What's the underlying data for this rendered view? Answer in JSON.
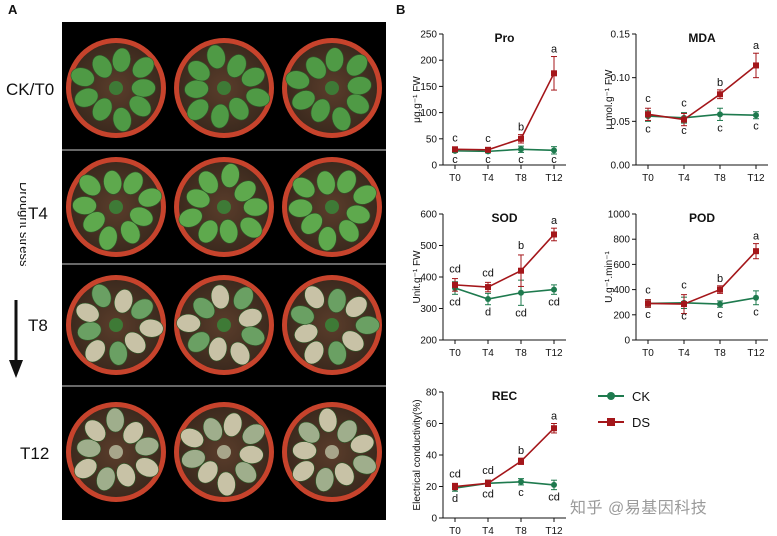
{
  "panels": {
    "a": "A",
    "b": "B"
  },
  "photo_panel": {
    "rows": [
      "CK/T0",
      "T4",
      "T8",
      "T12"
    ],
    "arrow_label": "Drought stress"
  },
  "legend": {
    "ck": {
      "label": "CK",
      "color": "#1e7a4e"
    },
    "ds": {
      "label": "DS",
      "color": "#a4161a"
    }
  },
  "watermark": "知乎 @易基因科技",
  "chart_data": [
    {
      "id": "pro",
      "type": "line",
      "title": "Pro",
      "ylabel": "μg.g⁻¹ FW",
      "categories": [
        "T0",
        "T4",
        "T8",
        "T12"
      ],
      "ylim": [
        0,
        250
      ],
      "yticks": [
        0,
        50,
        100,
        150,
        200,
        250
      ],
      "series": [
        {
          "name": "CK",
          "values": [
            27,
            26,
            30,
            28
          ],
          "err": [
            3,
            3,
            6,
            7
          ],
          "sig": [
            "c",
            "c",
            "c",
            "c"
          ]
        },
        {
          "name": "DS",
          "values": [
            30,
            29,
            50,
            175
          ],
          "err": [
            3,
            3,
            8,
            32
          ],
          "sig": [
            "c",
            "c",
            "b",
            "a"
          ]
        }
      ]
    },
    {
      "id": "mda",
      "type": "line",
      "title": "MDA",
      "ylabel": "μ mol.g⁻¹ FW",
      "categories": [
        "T0",
        "T4",
        "T8",
        "T12"
      ],
      "ylim": [
        0,
        0.15
      ],
      "yticks": [
        0.0,
        0.05,
        0.1,
        0.15
      ],
      "series": [
        {
          "name": "CK",
          "values": [
            0.056,
            0.054,
            0.058,
            0.057
          ],
          "err": [
            0.006,
            0.006,
            0.007,
            0.004
          ],
          "sig": [
            "c",
            "c",
            "c",
            "c"
          ]
        },
        {
          "name": "DS",
          "values": [
            0.058,
            0.052,
            0.081,
            0.114
          ],
          "err": [
            0.007,
            0.007,
            0.005,
            0.014
          ],
          "sig": [
            "c",
            "c",
            "b",
            "a"
          ]
        }
      ]
    },
    {
      "id": "sod",
      "type": "line",
      "title": "SOD",
      "ylabel": "Unit.g⁻¹ FW",
      "categories": [
        "T0",
        "T4",
        "T8",
        "T12"
      ],
      "ylim": [
        200,
        600
      ],
      "yticks": [
        200,
        300,
        400,
        500,
        600
      ],
      "series": [
        {
          "name": "CK",
          "values": [
            365,
            330,
            350,
            360
          ],
          "err": [
            20,
            18,
            40,
            15
          ],
          "sig": [
            "cd",
            "d",
            "cd",
            "cd"
          ]
        },
        {
          "name": "DS",
          "values": [
            375,
            368,
            420,
            535
          ],
          "err": [
            20,
            15,
            50,
            20
          ],
          "sig": [
            "cd",
            "cd",
            "b",
            "a"
          ]
        }
      ]
    },
    {
      "id": "pod",
      "type": "line",
      "title": "POD",
      "ylabel": "U.g⁻¹.min⁻¹",
      "categories": [
        "T0",
        "T4",
        "T8",
        "T12"
      ],
      "ylim": [
        0,
        1000
      ],
      "yticks": [
        0,
        200,
        400,
        600,
        800,
        1000
      ],
      "series": [
        {
          "name": "CK",
          "values": [
            290,
            295,
            285,
            335
          ],
          "err": [
            30,
            45,
            25,
            55
          ],
          "sig": [
            "c",
            "c",
            "c",
            "c"
          ]
        },
        {
          "name": "DS",
          "values": [
            290,
            285,
            400,
            705
          ],
          "err": [
            30,
            75,
            30,
            60
          ],
          "sig": [
            "c",
            "c",
            "b",
            "a"
          ]
        }
      ]
    },
    {
      "id": "rec",
      "type": "line",
      "title": "REC",
      "ylabel": "Electrical conductivity(%)",
      "categories": [
        "T0",
        "T4",
        "T8",
        "T12"
      ],
      "ylim": [
        0,
        80
      ],
      "yticks": [
        0,
        20,
        40,
        60,
        80
      ],
      "series": [
        {
          "name": "CK",
          "values": [
            19,
            22,
            23,
            21
          ],
          "err": [
            2,
            2,
            2,
            3
          ],
          "sig": [
            "d",
            "cd",
            "c",
            "cd"
          ]
        },
        {
          "name": "DS",
          "values": [
            20,
            22,
            36,
            57
          ],
          "err": [
            2,
            2,
            2,
            3
          ],
          "sig": [
            "cd",
            "cd",
            "b",
            "a"
          ]
        }
      ]
    }
  ]
}
